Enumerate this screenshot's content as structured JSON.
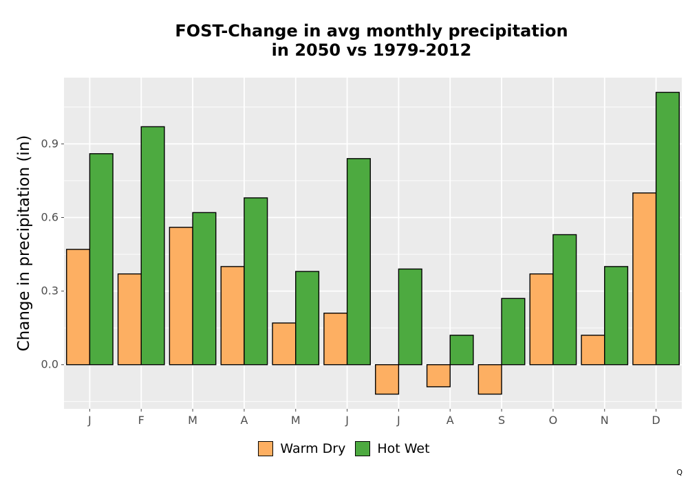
{
  "chart_data": {
    "type": "bar",
    "title_line1": "FOST-Change in avg monthly precipitation",
    "title_line2": "in 2050 vs 1979-2012",
    "xlabel": "",
    "ylabel": "Change in precipitation (in)",
    "categories": [
      "J",
      "F",
      "M",
      "A",
      "M",
      "J",
      "J",
      "A",
      "S",
      "O",
      "N",
      "D"
    ],
    "series": [
      {
        "name": "Warm Dry",
        "color": "#FDAF62",
        "values": [
          0.47,
          0.37,
          0.56,
          0.4,
          0.17,
          0.21,
          -0.12,
          -0.09,
          -0.12,
          0.37,
          0.12,
          0.7
        ]
      },
      {
        "name": "Hot Wet",
        "color": "#4DAA40",
        "values": [
          0.86,
          0.97,
          0.62,
          0.68,
          0.38,
          0.84,
          0.39,
          0.12,
          0.27,
          0.53,
          0.4,
          1.11
        ]
      }
    ],
    "yticks": [
      0.0,
      0.3,
      0.6,
      0.9
    ],
    "ytick_labels": [
      "0.0",
      "0.3",
      "0.6",
      "0.9"
    ],
    "ylim": [
      -0.18,
      1.17
    ],
    "grid": true,
    "background": "#EBEBEB",
    "legend_position": "bottom"
  },
  "corner_mark": "Q"
}
